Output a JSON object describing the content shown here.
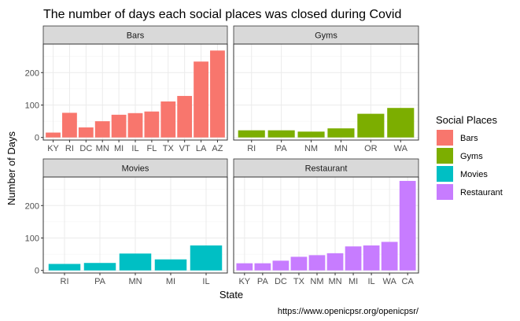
{
  "chart_data": {
    "type": "bar",
    "title": "The number of days each social places was closed during Covid",
    "xlabel": "State",
    "ylabel": "Number of Days",
    "caption": "https://www.openicpsr.org/openicpsr/",
    "legend": {
      "title": "Social Places",
      "position": "right",
      "entries": [
        "Bars",
        "Gyms",
        "Movies",
        "Restaurant"
      ]
    },
    "colors": {
      "Bars": "#F8766D",
      "Gyms": "#7CAE00",
      "Movies": "#00BFC4",
      "Restaurant": "#C77CFF"
    },
    "y_ticks": [
      0,
      100,
      200
    ],
    "ylim": [
      -8,
      288
    ],
    "grid": true,
    "facets": [
      {
        "name": "Bars",
        "categories": [
          "KY",
          "RI",
          "DC",
          "MN",
          "MI",
          "IL",
          "FL",
          "TX",
          "VT",
          "LA",
          "AZ"
        ],
        "values": [
          15,
          76,
          31,
          50,
          70,
          75,
          80,
          111,
          128,
          234,
          268
        ]
      },
      {
        "name": "Gyms",
        "categories": [
          "RI",
          "PA",
          "NM",
          "MN",
          "OR",
          "WA"
        ],
        "values": [
          22,
          22,
          18,
          28,
          73,
          91
        ]
      },
      {
        "name": "Movies",
        "categories": [
          "RI",
          "PA",
          "MN",
          "MI",
          "IL"
        ],
        "values": [
          20,
          23,
          52,
          34,
          77
        ]
      },
      {
        "name": "Restaurant",
        "categories": [
          "KY",
          "PA",
          "DC",
          "TX",
          "NM",
          "MN",
          "MI",
          "IL",
          "WA",
          "CA"
        ],
        "values": [
          22,
          22,
          30,
          42,
          47,
          53,
          74,
          77,
          88,
          276
        ]
      }
    ]
  }
}
